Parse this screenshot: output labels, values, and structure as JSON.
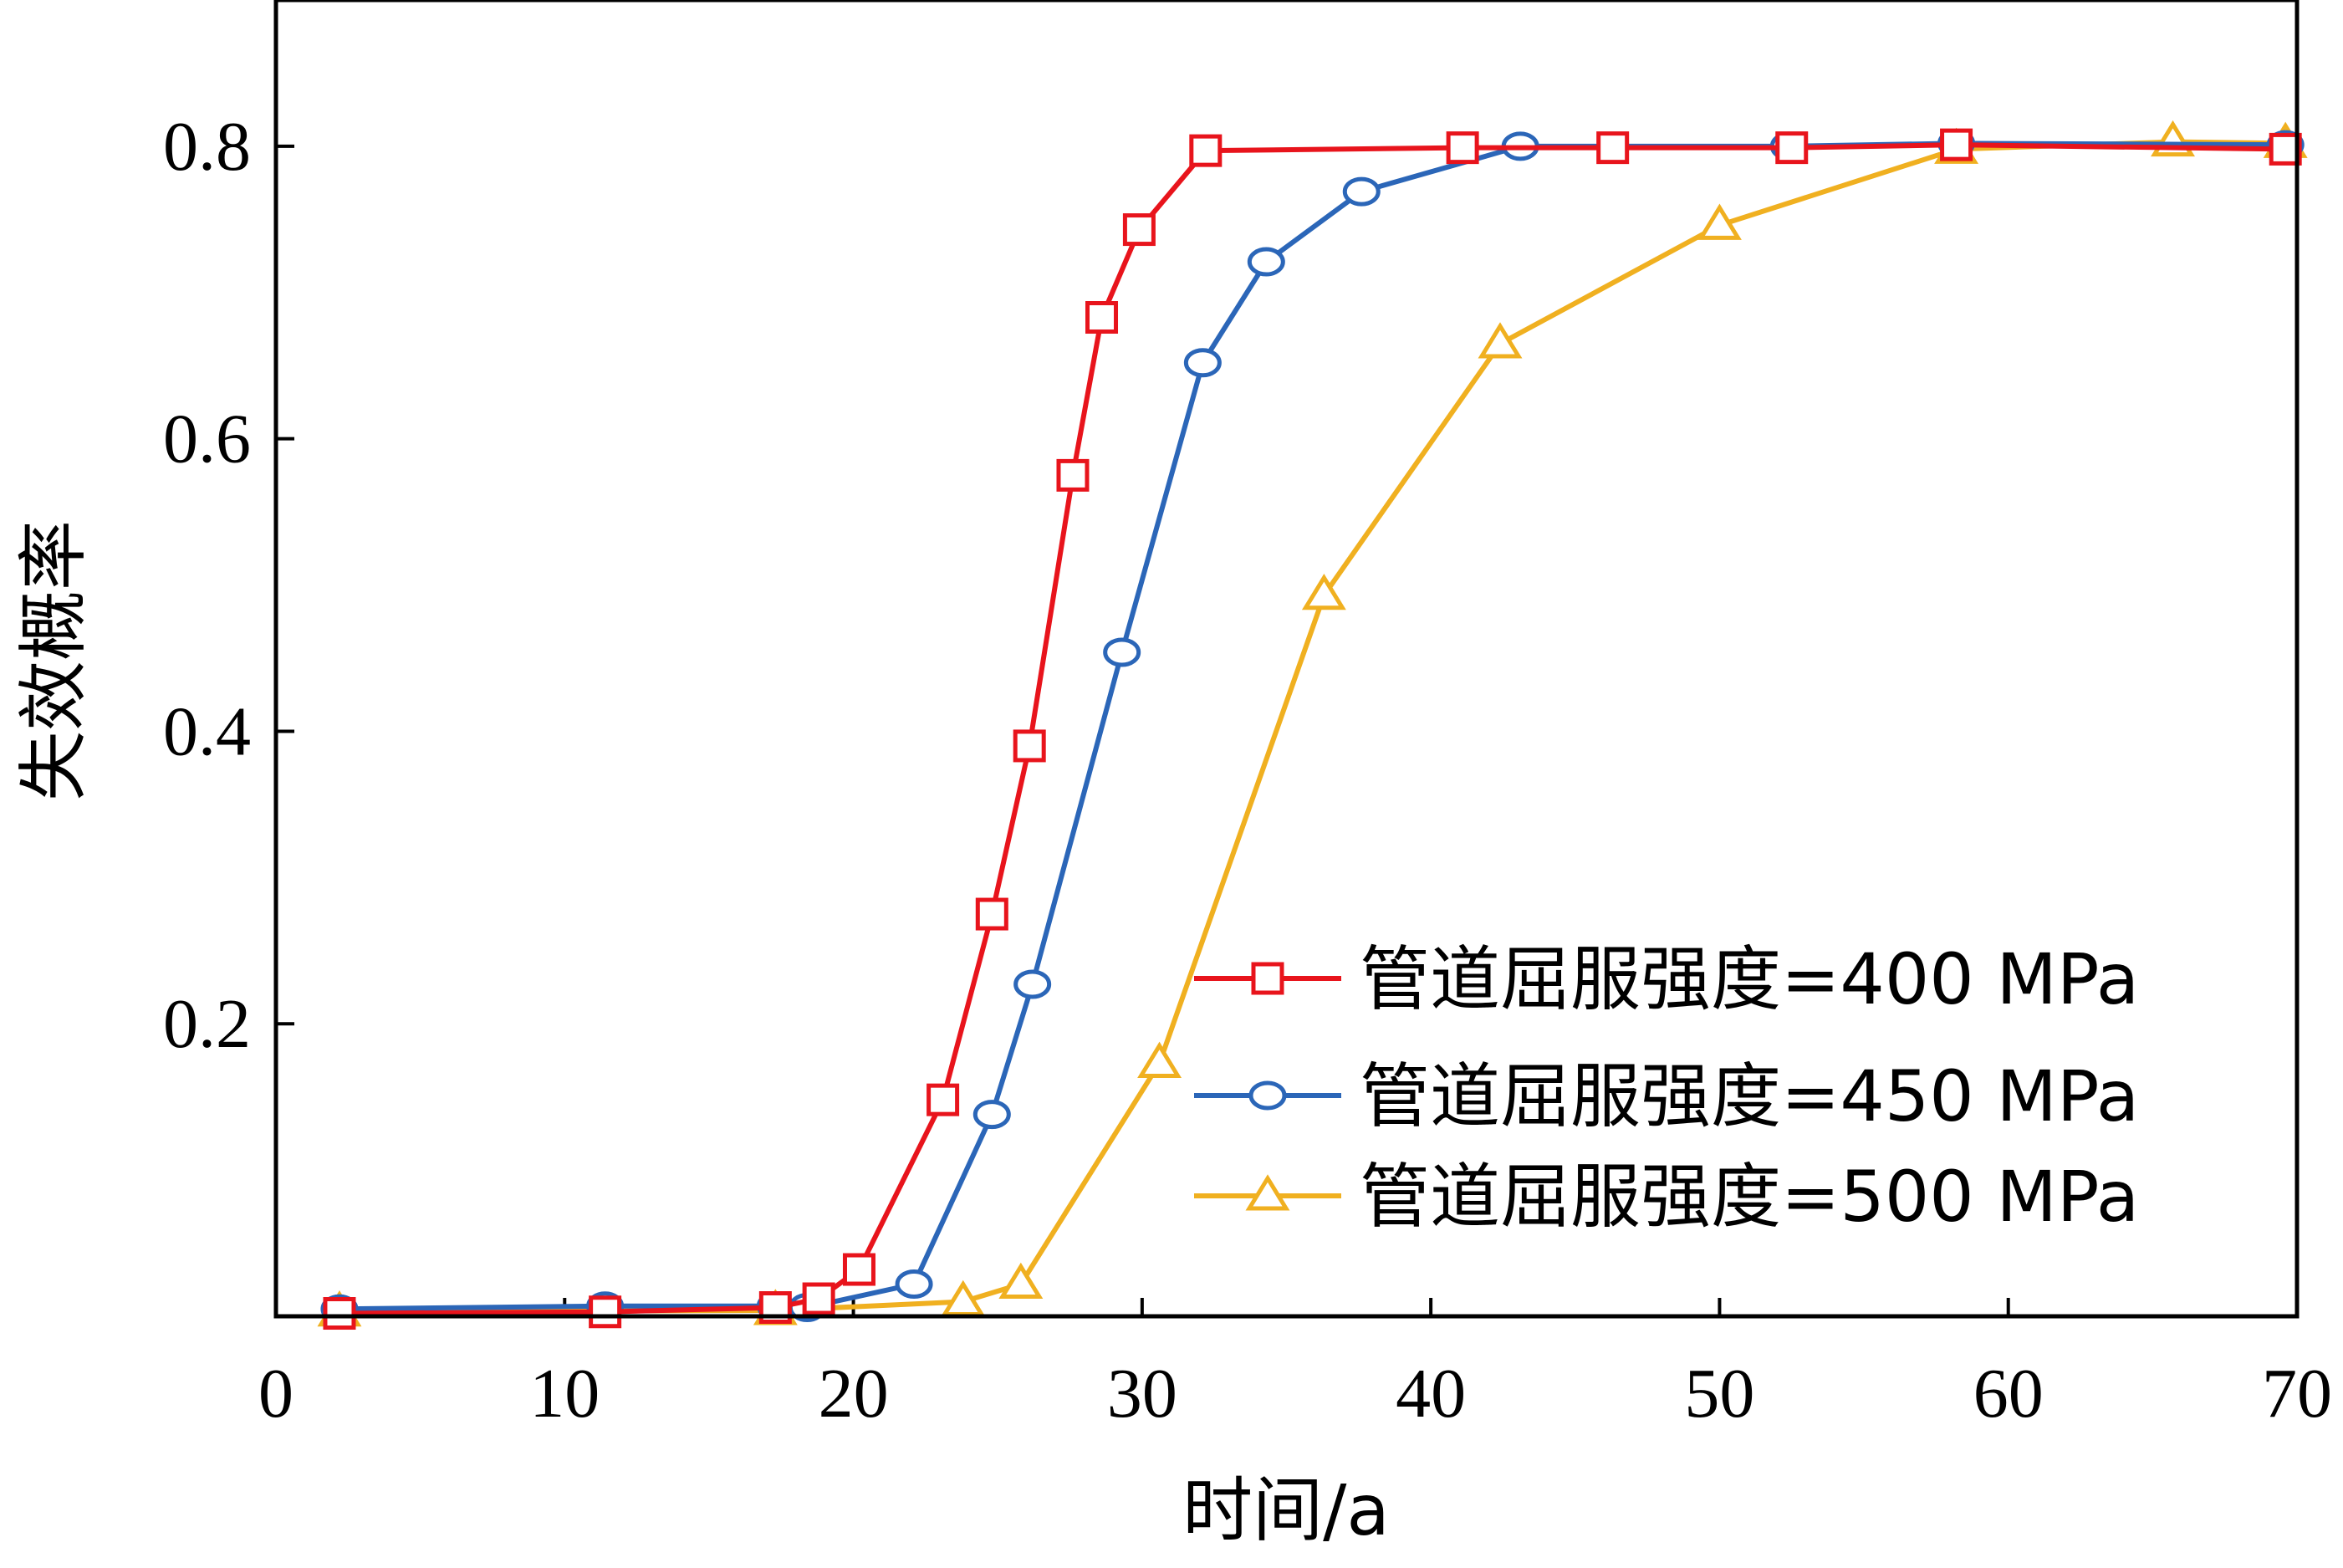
{
  "chart_data": {
    "type": "line",
    "xlabel": "时间/a",
    "ylabel": "失效概率",
    "xlim": [
      0,
      70
    ],
    "ylim": [
      0,
      0.9
    ],
    "xticks": [
      0,
      10,
      20,
      30,
      40,
      50,
      60,
      70
    ],
    "xtick_labels": [
      "0",
      "10",
      "20",
      "30",
      "40",
      "50",
      "60",
      "70"
    ],
    "yticks": [
      0.2,
      0.4,
      0.6,
      0.8
    ],
    "ytick_labels": [
      "0.2",
      "0.4",
      "0.6",
      "0.8"
    ],
    "grid": false,
    "legend_position": "lower-right",
    "series": [
      {
        "name": "管道屈服强度=400 MPa",
        "color": "#e8141c",
        "marker": "square",
        "x": [
          2.2,
          11.4,
          17.3,
          18.8,
          20.2,
          23.1,
          24.8,
          26.1,
          27.6,
          28.6,
          29.9,
          32.2,
          41.1,
          46.3,
          52.5,
          58.2,
          69.6
        ],
        "y": [
          0.002,
          0.003,
          0.006,
          0.012,
          0.032,
          0.148,
          0.275,
          0.39,
          0.575,
          0.683,
          0.743,
          0.797,
          0.799,
          0.799,
          0.799,
          0.801,
          0.798
        ]
      },
      {
        "name": "管道屈服强度=450 MPa",
        "color": "#2b66b8",
        "marker": "circle",
        "x": [
          2.2,
          11.4,
          17.3,
          18.4,
          22.1,
          24.8,
          26.2,
          29.3,
          32.1,
          34.3,
          37.6,
          43.1,
          52.4,
          58.2,
          69.6
        ],
        "y": [
          0.005,
          0.007,
          0.007,
          0.006,
          0.022,
          0.138,
          0.227,
          0.454,
          0.652,
          0.721,
          0.769,
          0.8,
          0.8,
          0.802,
          0.801
        ]
      },
      {
        "name": "管道屈服强度=500 MPa",
        "color": "#f0b020",
        "marker": "triangle",
        "x": [
          2.2,
          17.3,
          23.8,
          25.8,
          30.6,
          36.3,
          42.4,
          50.0,
          58.2,
          65.7,
          69.6
        ],
        "y": [
          0.003,
          0.004,
          0.01,
          0.022,
          0.173,
          0.493,
          0.665,
          0.746,
          0.798,
          0.803,
          0.802
        ]
      }
    ]
  }
}
